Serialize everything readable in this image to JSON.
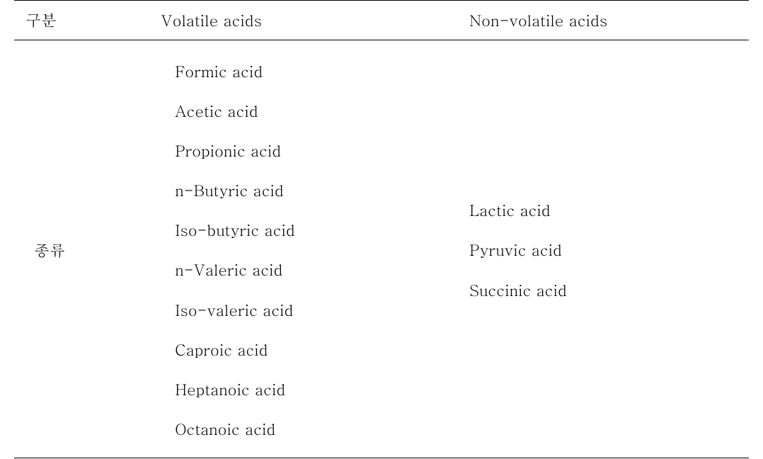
{
  "table": {
    "headers": {
      "category": "구분",
      "volatile": "Volatile acids",
      "nonvolatile": "Non-volatile acids"
    },
    "row_label": "종류",
    "volatile_acids": [
      "Formic acid",
      "Acetic acid",
      "Propionic acid",
      "n-Butyric acid",
      "Iso-butyric acid",
      "n-Valeric acid",
      "Iso-valeric acid",
      "Caproic acid",
      "Heptanoic acid",
      "Octanoic acid"
    ],
    "nonvolatile_acids": [
      "Lactic acid",
      "Pyruvic acid",
      "Succinic acid"
    ],
    "styling": {
      "font_size_pt": 22,
      "text_color": "#000000",
      "background_color": "#ffffff",
      "border_color": "#000000",
      "top_border_width": 1.5,
      "header_border_width": 1,
      "bottom_border_width": 1.5,
      "line_height": 2.55,
      "column_widths_pct": [
        19,
        42,
        39
      ]
    }
  }
}
